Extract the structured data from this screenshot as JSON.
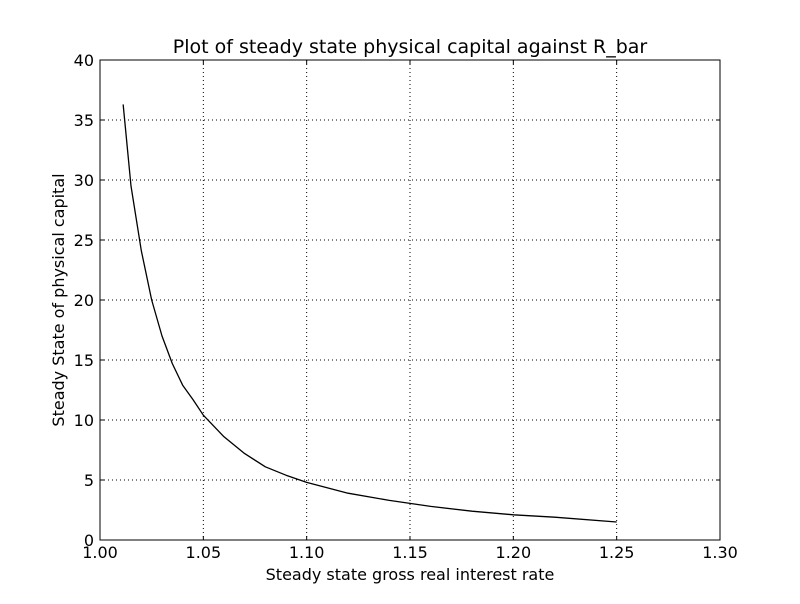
{
  "chart_data": {
    "type": "line",
    "title": "Plot of steady state physical capital against R_bar",
    "xlabel": "Steady state gross real interest rate",
    "ylabel": "Steady State of physical capital",
    "xlim": [
      1.0,
      1.3
    ],
    "ylim": [
      0,
      40
    ],
    "x_ticks": [
      1.0,
      1.05,
      1.1,
      1.15,
      1.2,
      1.25,
      1.3
    ],
    "y_ticks": [
      0,
      5,
      10,
      15,
      20,
      25,
      30,
      35,
      40
    ],
    "x_tick_labels": [
      "1.00",
      "1.05",
      "1.10",
      "1.15",
      "1.20",
      "1.25",
      "1.30"
    ],
    "y_tick_labels": [
      "0",
      "5",
      "10",
      "15",
      "20",
      "25",
      "30",
      "35",
      "40"
    ],
    "grid": true,
    "grid_style": "dotted",
    "series": [
      {
        "color": "#000000",
        "x": [
          1.0112,
          1.015,
          1.02,
          1.025,
          1.03,
          1.035,
          1.04,
          1.045,
          1.05,
          1.06,
          1.07,
          1.08,
          1.09,
          1.1,
          1.12,
          1.14,
          1.16,
          1.18,
          1.2,
          1.22,
          1.25
        ],
        "y": [
          36.3,
          29.5,
          24.1,
          20.0,
          17.0,
          14.7,
          12.9,
          11.7,
          10.4,
          8.6,
          7.2,
          6.1,
          5.4,
          4.8,
          3.9,
          3.3,
          2.8,
          2.4,
          2.1,
          1.9,
          1.5
        ]
      }
    ]
  }
}
